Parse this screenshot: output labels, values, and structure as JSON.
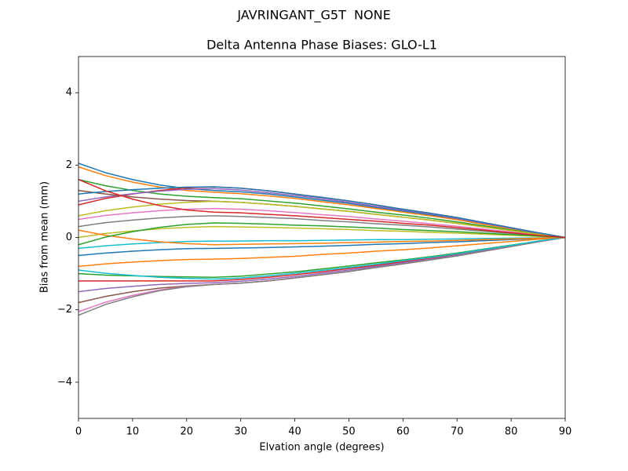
{
  "chart_data": {
    "type": "line",
    "suptitle": "JAVRINGANT_G5T  NONE",
    "title": "Delta Antenna Phase Biases: GLO-L1",
    "xlabel": "Elvation angle (degrees)",
    "ylabel": "Bias from mean (mm)",
    "x": [
      0,
      5,
      10,
      15,
      20,
      25,
      30,
      35,
      40,
      45,
      50,
      55,
      60,
      65,
      70,
      75,
      80,
      85,
      90
    ],
    "xlim": [
      0,
      90
    ],
    "xticks": [
      0,
      10,
      20,
      30,
      40,
      50,
      60,
      70,
      80,
      90
    ],
    "ylim": [
      -5,
      5
    ],
    "yticks": [
      {
        "value": -4,
        "label": "−4"
      },
      {
        "value": -2,
        "label": "−2"
      },
      0,
      2,
      4
    ],
    "grid": false,
    "series": [
      {
        "color": "#1f77b4",
        "values": [
          2.05,
          1.79,
          1.6,
          1.45,
          1.35,
          1.3,
          1.26,
          1.2,
          1.12,
          1.03,
          0.94,
          0.83,
          0.73,
          0.62,
          0.51,
          0.38,
          0.25,
          0.12,
          0
        ]
      },
      {
        "color": "#ff7f0e",
        "values": [
          1.95,
          1.71,
          1.53,
          1.39,
          1.3,
          1.25,
          1.21,
          1.15,
          1.08,
          0.99,
          0.9,
          0.8,
          0.7,
          0.6,
          0.49,
          0.36,
          0.24,
          0.11,
          0
        ]
      },
      {
        "color": "#2ca02c",
        "values": [
          1.6,
          1.43,
          1.3,
          1.2,
          1.14,
          1.1,
          1.07,
          1.01,
          0.95,
          0.87,
          0.79,
          0.7,
          0.62,
          0.53,
          0.43,
          0.32,
          0.21,
          0.1,
          0
        ]
      },
      {
        "color": "#d62728",
        "values": [
          0.9,
          1.08,
          1.2,
          1.3,
          1.37,
          1.4,
          1.36,
          1.29,
          1.2,
          1.11,
          1.01,
          0.9,
          0.78,
          0.67,
          0.55,
          0.41,
          0.27,
          0.13,
          0
        ]
      },
      {
        "color": "#9467bd",
        "values": [
          1.0,
          1.12,
          1.21,
          1.28,
          1.33,
          1.35,
          1.31,
          1.24,
          1.16,
          1.07,
          0.97,
          0.86,
          0.76,
          0.65,
          0.53,
          0.39,
          0.26,
          0.12,
          0
        ]
      },
      {
        "color": "#8c564b",
        "values": [
          1.3,
          1.2,
          1.12,
          1.06,
          1.02,
          1.0,
          0.97,
          0.92,
          0.86,
          0.79,
          0.72,
          0.64,
          0.56,
          0.48,
          0.39,
          0.29,
          0.19,
          0.09,
          0
        ]
      },
      {
        "color": "#e377c2",
        "values": [
          0.5,
          0.61,
          0.68,
          0.74,
          0.78,
          0.8,
          0.78,
          0.74,
          0.69,
          0.63,
          0.58,
          0.51,
          0.45,
          0.38,
          0.31,
          0.23,
          0.15,
          0.07,
          0
        ]
      },
      {
        "color": "#7f7f7f",
        "values": [
          0.3,
          0.41,
          0.48,
          0.54,
          0.58,
          0.6,
          0.58,
          0.55,
          0.52,
          0.47,
          0.43,
          0.38,
          0.34,
          0.29,
          0.23,
          0.17,
          0.11,
          0.05,
          0
        ]
      },
      {
        "color": "#bcbd22",
        "values": [
          0,
          0.11,
          0.18,
          0.24,
          0.28,
          0.3,
          0.29,
          0.28,
          0.26,
          0.24,
          0.22,
          0.19,
          0.17,
          0.14,
          0.12,
          0.09,
          0.06,
          0.03,
          0
        ]
      },
      {
        "color": "#17becf",
        "values": [
          -0.3,
          -0.23,
          -0.18,
          -0.14,
          -0.11,
          -0.1,
          -0.1,
          -0.09,
          -0.09,
          -0.08,
          -0.07,
          -0.06,
          -0.06,
          -0.05,
          -0.04,
          -0.03,
          -0.02,
          -0.01,
          0
        ]
      },
      {
        "color": "#1f77b4",
        "values": [
          -0.5,
          -0.43,
          -0.38,
          -0.34,
          -0.31,
          -0.3,
          -0.29,
          -0.28,
          -0.26,
          -0.24,
          -0.22,
          -0.19,
          -0.17,
          -0.14,
          -0.12,
          -0.09,
          -0.06,
          -0.03,
          0
        ]
      },
      {
        "color": "#ff7f0e",
        "values": [
          -0.8,
          -0.73,
          -0.68,
          -0.64,
          -0.61,
          -0.6,
          -0.58,
          -0.55,
          -0.52,
          -0.47,
          -0.43,
          -0.38,
          -0.34,
          -0.29,
          -0.23,
          -0.17,
          -0.11,
          -0.05,
          0
        ]
      },
      {
        "color": "#2ca02c",
        "values": [
          -1.0,
          -1.04,
          -1.06,
          -1.08,
          -1.09,
          -1.1,
          -1.07,
          -1.01,
          -0.95,
          -0.87,
          -0.79,
          -0.7,
          -0.62,
          -0.53,
          -0.43,
          -0.32,
          -0.21,
          -0.1,
          0
        ]
      },
      {
        "color": "#d62728",
        "values": [
          -1.2,
          -1.2,
          -1.2,
          -1.2,
          -1.2,
          -1.2,
          -1.16,
          -1.1,
          -1.03,
          -0.95,
          -0.86,
          -0.77,
          -0.67,
          -0.58,
          -0.47,
          -0.35,
          -0.23,
          -0.11,
          0
        ]
      },
      {
        "color": "#9467bd",
        "values": [
          -1.5,
          -1.41,
          -1.35,
          -1.3,
          -1.27,
          -1.25,
          -1.21,
          -1.15,
          -1.08,
          -0.99,
          -0.9,
          -0.8,
          -0.7,
          -0.6,
          -0.49,
          -0.36,
          -0.24,
          -0.11,
          0
        ]
      },
      {
        "color": "#8c564b",
        "values": [
          -1.8,
          -1.63,
          -1.5,
          -1.4,
          -1.34,
          -1.3,
          -1.26,
          -1.2,
          -1.12,
          -1.03,
          -0.94,
          -0.83,
          -0.73,
          -0.62,
          -0.51,
          -0.38,
          -0.25,
          -0.12,
          0
        ]
      },
      {
        "color": "#e377c2",
        "values": [
          -2.05,
          -1.79,
          -1.6,
          -1.45,
          -1.35,
          -1.3,
          -1.26,
          -1.2,
          -1.12,
          -1.03,
          -0.94,
          -0.83,
          -0.73,
          -0.62,
          -0.51,
          -0.38,
          -0.25,
          -0.12,
          0
        ]
      },
      {
        "color": "#7f7f7f",
        "values": [
          -2.15,
          -1.85,
          -1.64,
          -1.47,
          -1.36,
          -1.3,
          -1.26,
          -1.2,
          -1.12,
          -1.03,
          -0.94,
          -0.83,
          -0.73,
          -0.62,
          -0.51,
          -0.38,
          -0.25,
          -0.12,
          0
        ]
      },
      {
        "color": "#bcbd22",
        "values": [
          0.6,
          0.74,
          0.84,
          0.92,
          0.97,
          1.0,
          0.97,
          0.92,
          0.86,
          0.79,
          0.72,
          0.64,
          0.56,
          0.48,
          0.39,
          0.29,
          0.19,
          0.09,
          0
        ]
      },
      {
        "color": "#17becf",
        "values": [
          -0.9,
          -0.99,
          -1.05,
          -1.1,
          -1.13,
          -1.15,
          -1.12,
          -1.06,
          -0.99,
          -0.91,
          -0.83,
          -0.74,
          -0.64,
          -0.55,
          -0.45,
          -0.33,
          -0.22,
          -0.1,
          0
        ]
      },
      {
        "color": "#1f77b4",
        "values": [
          1.2,
          1.27,
          1.32,
          1.36,
          1.39,
          1.4,
          1.36,
          1.29,
          1.2,
          1.11,
          1.01,
          0.9,
          0.78,
          0.67,
          0.55,
          0.41,
          0.27,
          0.13,
          0
        ]
      },
      {
        "color": "#ff7f0e",
        "values": [
          0.2,
          0.06,
          -0.04,
          -0.12,
          -0.17,
          -0.2,
          -0.19,
          -0.18,
          -0.17,
          -0.16,
          -0.14,
          -0.13,
          -0.11,
          -0.1,
          -0.08,
          -0.06,
          -0.04,
          -0.02,
          0
        ]
      },
      {
        "color": "#2ca02c",
        "values": [
          -0.2,
          0.01,
          0.16,
          0.28,
          0.36,
          0.4,
          0.39,
          0.37,
          0.34,
          0.32,
          0.29,
          0.26,
          0.22,
          0.19,
          0.16,
          0.12,
          0.08,
          0.04,
          0
        ]
      },
      {
        "color": "#d62728",
        "values": [
          1.6,
          1.29,
          1.06,
          0.88,
          0.76,
          0.7,
          0.68,
          0.64,
          0.6,
          0.55,
          0.5,
          0.45,
          0.39,
          0.34,
          0.27,
          0.2,
          0.13,
          0.06,
          0
        ]
      }
    ]
  }
}
